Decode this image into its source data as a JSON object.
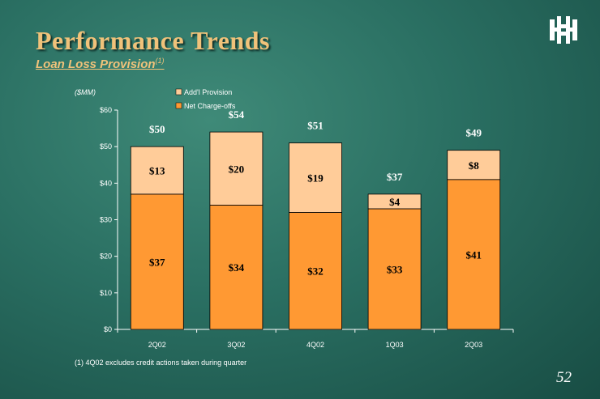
{
  "header": {
    "title": "Performance Trends",
    "subtitle": "Loan Loss Provision",
    "subtitle_footnote_mark": "(1)"
  },
  "footnote": "(1)   4Q02 excludes credit actions taken during quarter",
  "page_number": "52",
  "logo": {
    "icon": "bank-logo-icon"
  },
  "colors": {
    "net_chargeoffs": "#ff9933",
    "addl_provision": "#ffcc99",
    "title": "#f0c27a"
  },
  "chart_data": {
    "type": "bar",
    "stacked": true,
    "unit_label": "($MM)",
    "categories": [
      "2Q02",
      "3Q02",
      "4Q02",
      "1Q03",
      "2Q03"
    ],
    "series": [
      {
        "name": "Net Charge-offs",
        "values": [
          37,
          34,
          32,
          33,
          41
        ],
        "labels": [
          "$37",
          "$34",
          "$32",
          "$33",
          "$41"
        ]
      },
      {
        "name": "Add'l Provision",
        "values": [
          13,
          20,
          19,
          4,
          8
        ],
        "labels": [
          "$13",
          "$20",
          "$19",
          "$4",
          "$8"
        ]
      }
    ],
    "totals": [
      50,
      54,
      51,
      37,
      49
    ],
    "total_labels": [
      "$50",
      "$54",
      "$51",
      "$37",
      "$49"
    ],
    "ylim": [
      0,
      60
    ],
    "yticks": [
      0,
      10,
      20,
      30,
      40,
      50,
      60
    ],
    "ytick_labels": [
      "$0",
      "$10",
      "$20",
      "$30",
      "$40",
      "$50",
      "$60"
    ],
    "legend": {
      "placement": "top",
      "entries": [
        "Add'l Provision",
        "Net Charge-offs"
      ]
    },
    "grid": false
  }
}
